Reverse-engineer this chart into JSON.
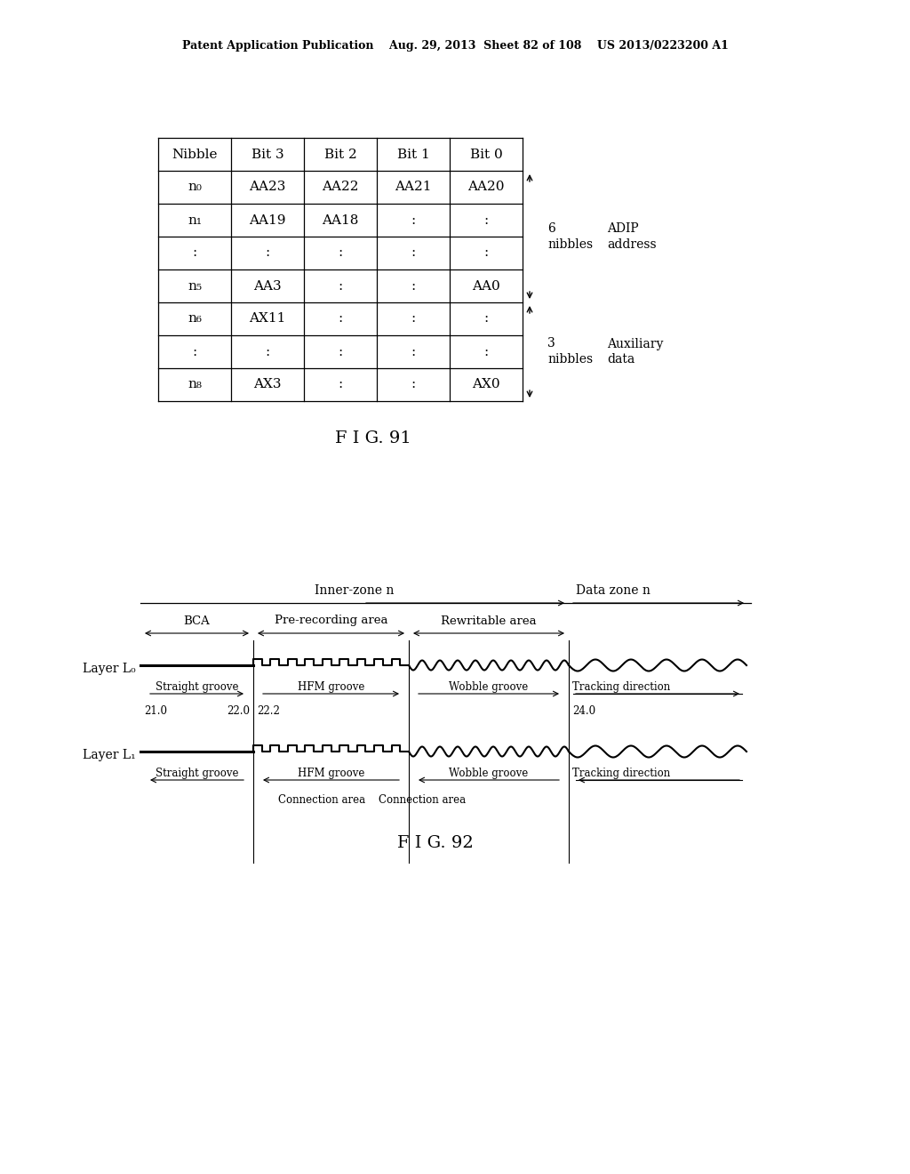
{
  "header_text": "Patent Application Publication    Aug. 29, 2013  Sheet 82 of 108    US 2013/0223200 A1",
  "fig91_label": "F I G. 91",
  "fig92_label": "F I G. 92",
  "table": {
    "col_headers": [
      "Nibble",
      "Bit 3",
      "Bit 2",
      "Bit 1",
      "Bit 0"
    ],
    "rows": [
      [
        "n₀",
        "AA23",
        "AA22",
        "AA21",
        "AA20"
      ],
      [
        "n₁",
        "AA19",
        "AA18",
        ":",
        ":"
      ],
      [
        ":",
        ":",
        ":",
        ":",
        ":"
      ],
      [
        "n₅",
        "AA3",
        ":",
        ":",
        "AA0"
      ],
      [
        "n₆",
        "AX11",
        ":",
        ":",
        ":"
      ],
      [
        ":",
        ":",
        ":",
        ":",
        ":"
      ],
      [
        "n₈",
        "AX3",
        ":",
        ":",
        "AX0"
      ]
    ]
  },
  "fig92": {
    "inner_zone_label": "Inner-zone n",
    "data_zone_label": "Data zone n",
    "area_labels": [
      "BCA",
      "Pre-recording area",
      "Rewritable area"
    ],
    "layer0_label": "Layer L₀",
    "layer1_label": "Layer L₁",
    "groove_labels_L0": [
      "Straight groove",
      "HFM groove",
      "Wobble groove",
      "Tracking direction"
    ],
    "groove_labels_L1": [
      "Straight groove",
      "HFM groove",
      "Wobble groove",
      "Tracking direction"
    ],
    "numbers_L0": [
      "21.0",
      "22.0",
      "22.2",
      "24.0"
    ],
    "connection_labels": [
      "Connection area",
      "Connection area"
    ]
  }
}
